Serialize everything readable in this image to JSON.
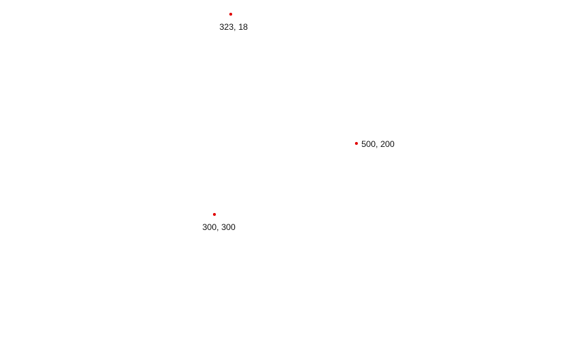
{
  "colors": {
    "background": "#ffffff",
    "marker": "#e00000",
    "label_text": "#111111"
  },
  "markers": [
    {
      "label": "323, 18"
    },
    {
      "label": "500, 200"
    },
    {
      "label": "300, 300"
    }
  ]
}
